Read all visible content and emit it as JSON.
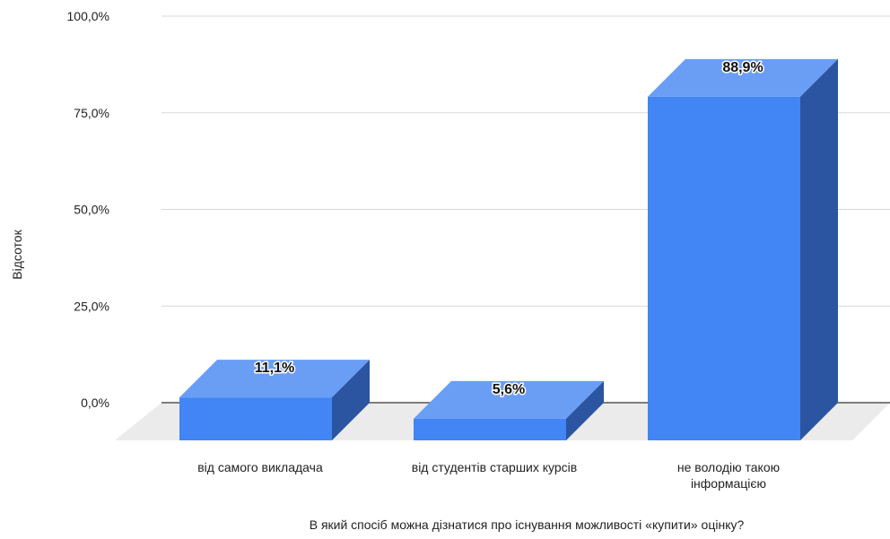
{
  "chart_data": {
    "type": "bar",
    "style": "3d-column",
    "categories": [
      "від самого викладача",
      "від студентів старших курсів",
      "не володію такою інформацією"
    ],
    "category_lines": [
      [
        "від самого викладача"
      ],
      [
        "від студентів старших курсів"
      ],
      [
        "не володію такою",
        "інформацією"
      ]
    ],
    "values": [
      11.1,
      5.6,
      88.9
    ],
    "data_labels": [
      "11,1%",
      "5,6%",
      "88,9%"
    ],
    "title": "",
    "xlabel": "В який спосіб можна дізнатися про існування можливості «купити» оцінку?",
    "ylabel": "Відсоток",
    "ylim": [
      0,
      100
    ],
    "yticks": [
      0,
      25,
      50,
      75,
      100
    ],
    "ytick_labels": [
      "0,0%",
      "25,0%",
      "50,0%",
      "75,0%",
      "100,0%"
    ],
    "grid": true,
    "legend": "none",
    "colors": {
      "front": "#4285f4",
      "top": "#6a9ef5",
      "side": "#2b55a0",
      "floor": "#ebebeb",
      "gridline": "#d9d9d9",
      "baseline": "#333333"
    }
  }
}
